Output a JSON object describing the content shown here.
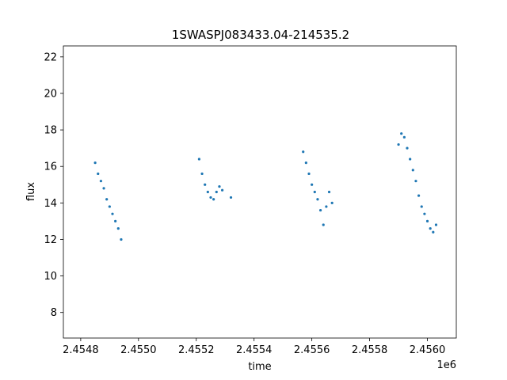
{
  "chart_data": {
    "type": "scatter",
    "title": "1SWASPJ083433.04-214535.2",
    "xlabel": "time",
    "ylabel": "flux",
    "x_offset_label": "1e6",
    "xlim": [
      2.45474,
      2.4561
    ],
    "ylim": [
      6.6,
      22.6
    ],
    "x_ticks": [
      2.4548,
      2.455,
      2.4552,
      2.4554,
      2.4556,
      2.4558,
      2.456
    ],
    "x_tick_labels": [
      "2.4548",
      "2.4550",
      "2.4552",
      "2.4554",
      "2.4556",
      "2.4558",
      "2.4560"
    ],
    "y_ticks": [
      8,
      10,
      12,
      14,
      16,
      18,
      20,
      22
    ],
    "y_tick_labels": [
      "8",
      "10",
      "12",
      "14",
      "16",
      "18",
      "20",
      "22"
    ],
    "grid": false,
    "marker_color": "#1f77b4",
    "series": [
      {
        "points": [
          [
            2.45485,
            16.2
          ],
          [
            2.45486,
            15.6
          ],
          [
            2.45487,
            15.2
          ],
          [
            2.45488,
            14.8
          ],
          [
            2.45489,
            14.2
          ],
          [
            2.4549,
            13.8
          ],
          [
            2.45491,
            13.4
          ],
          [
            2.45492,
            13.0
          ],
          [
            2.45493,
            12.6
          ],
          [
            2.45494,
            12.0
          ],
          [
            2.45521,
            16.4
          ],
          [
            2.45522,
            15.6
          ],
          [
            2.45523,
            15.0
          ],
          [
            2.45524,
            14.6
          ],
          [
            2.45525,
            14.3
          ],
          [
            2.45526,
            14.2
          ],
          [
            2.45527,
            14.6
          ],
          [
            2.45528,
            14.9
          ],
          [
            2.45529,
            14.7
          ],
          [
            2.45532,
            14.3
          ],
          [
            2.45557,
            16.8
          ],
          [
            2.45558,
            16.2
          ],
          [
            2.45559,
            15.6
          ],
          [
            2.4556,
            15.0
          ],
          [
            2.45561,
            14.6
          ],
          [
            2.45562,
            14.2
          ],
          [
            2.45563,
            13.6
          ],
          [
            2.45564,
            12.8
          ],
          [
            2.45565,
            13.8
          ],
          [
            2.45566,
            14.6
          ],
          [
            2.45567,
            14.0
          ],
          [
            2.4559,
            17.2
          ],
          [
            2.45591,
            17.8
          ],
          [
            2.45592,
            17.6
          ],
          [
            2.45593,
            17.0
          ],
          [
            2.45594,
            16.4
          ],
          [
            2.45595,
            15.8
          ],
          [
            2.45596,
            15.2
          ],
          [
            2.45597,
            14.4
          ],
          [
            2.45598,
            13.8
          ],
          [
            2.45599,
            13.4
          ],
          [
            2.456,
            13.0
          ],
          [
            2.45601,
            12.6
          ],
          [
            2.45602,
            12.4
          ],
          [
            2.45603,
            12.8
          ]
        ]
      }
    ]
  }
}
